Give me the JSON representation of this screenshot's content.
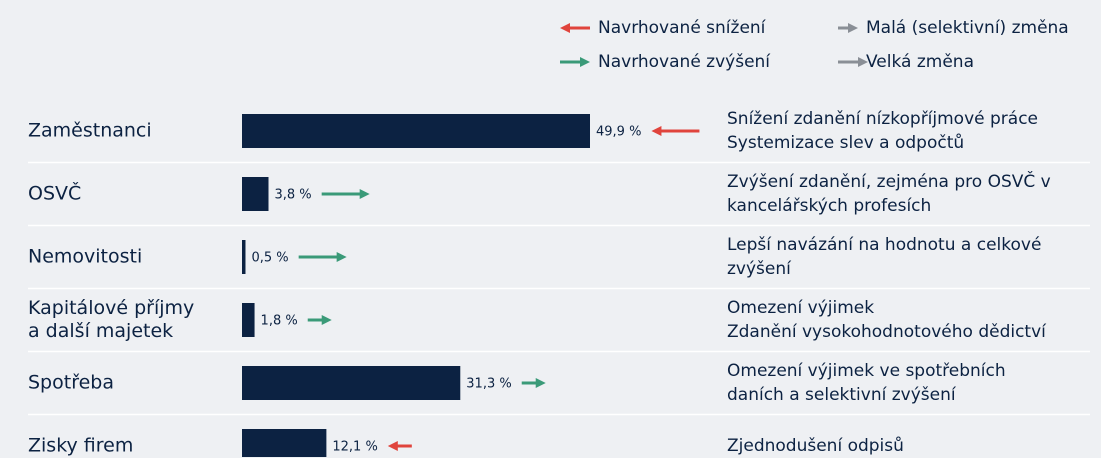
{
  "chart_data": {
    "type": "bar",
    "legend": [
      {
        "name": "Navrhované snížení",
        "color": "#e0443c",
        "size": "large"
      },
      {
        "name": "Navrhované zvýšení",
        "color": "#3a9a78",
        "size": "large"
      },
      {
        "name": "Malá (selektivní) změna",
        "color": "#8a8f96",
        "size": "small"
      },
      {
        "name": "Velká změna",
        "color": "#8a8f96",
        "size": "large"
      }
    ],
    "categories": [
      "Zaměstnanci",
      "OSVČ",
      "Nemovitosti",
      "Kapitálové příjmy\na další majetek",
      "Spotřeba",
      "Zisky firem"
    ],
    "values": [
      49.9,
      3.8,
      0.5,
      1.8,
      31.3,
      12.1
    ],
    "value_labels": [
      "49,9 %",
      "3,8 %",
      "0,5 %",
      "1,8 %",
      "31,3 %",
      "12,1 %"
    ],
    "color": "#0c2242",
    "arrow_colors": [
      "#e0443c",
      "#3a9a78",
      "#3a9a78",
      "#3a9a78",
      "#3a9a78",
      "#e0443c"
    ],
    "arrow_sizes": [
      "large",
      "large",
      "large",
      "small",
      "small",
      "small"
    ],
    "descriptions": [
      "Snížení zdanění nízkopříjmové práce\nSystemizace slev a odpočtů",
      "Zvýšení zdanění, zejména pro OSVČ v\nkancelářských profesích",
      "Lepší navázání na hodnotu a celkové\nzvýšení",
      "Omezení výjimek\nZdanění vysokohodnotového dědictví",
      "Omezení výjimek ve spotřebních\ndaních a selektivní zvýšení",
      "Zjednodušení odpisů"
    ]
  }
}
